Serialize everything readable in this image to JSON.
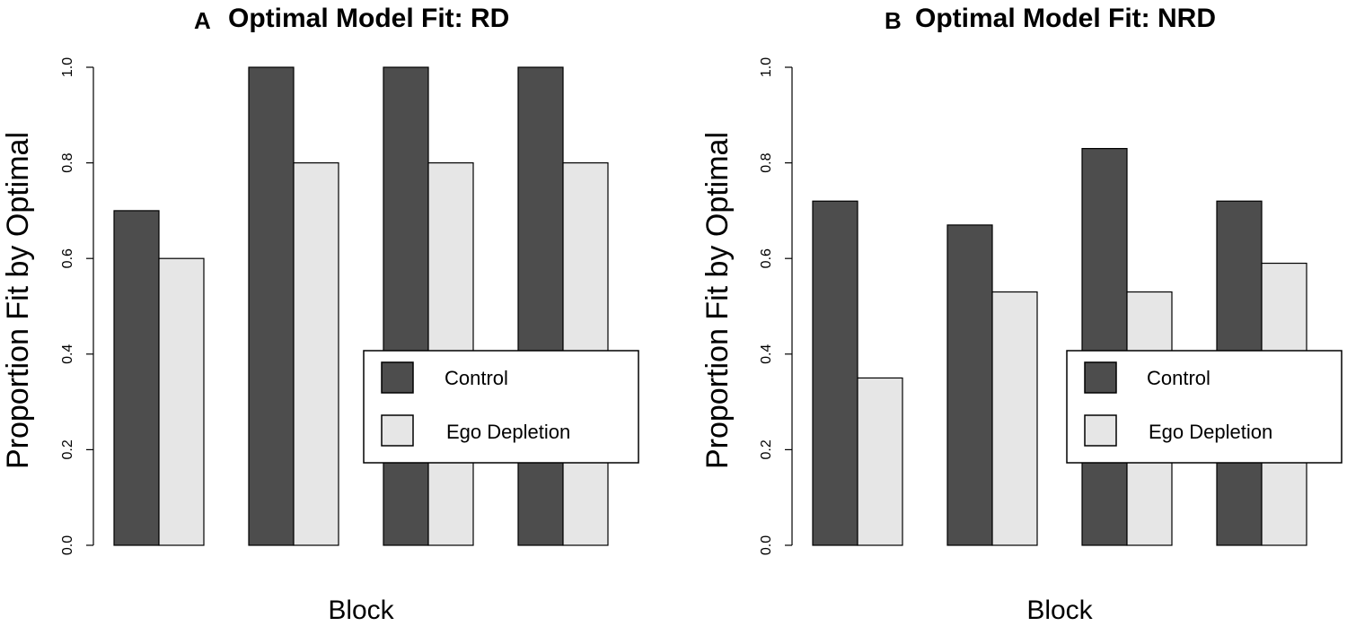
{
  "chart_data": [
    {
      "type": "bar",
      "panel_letter": "A",
      "title": "Optimal Model Fit: RD",
      "xlabel": "Block",
      "ylabel": "Proportion Fit by Optimal",
      "ylim": [
        0,
        1.0
      ],
      "yticks": [
        "0.0",
        "0.2",
        "0.4",
        "0.6",
        "0.8",
        "1.0"
      ],
      "categories": [
        "",
        "",
        "",
        ""
      ],
      "series": [
        {
          "name": "Control",
          "color": "#4d4d4d",
          "values": [
            0.7,
            1.0,
            1.0,
            1.0
          ]
        },
        {
          "name": "Ego Depletion",
          "color": "#e6e6e6",
          "values": [
            0.6,
            0.8,
            0.8,
            0.8
          ]
        }
      ],
      "legend_position": "bottom-right"
    },
    {
      "type": "bar",
      "panel_letter": "B",
      "title": "Optimal Model Fit: NRD",
      "xlabel": "Block",
      "ylabel": "Proportion Fit by Optimal",
      "ylim": [
        0,
        1.0
      ],
      "yticks": [
        "0.0",
        "0.2",
        "0.4",
        "0.6",
        "0.8",
        "1.0"
      ],
      "categories": [
        "",
        "",
        "",
        ""
      ],
      "series": [
        {
          "name": "Control",
          "color": "#4d4d4d",
          "values": [
            0.72,
            0.67,
            0.83,
            0.72
          ]
        },
        {
          "name": "Ego Depletion",
          "color": "#e6e6e6",
          "values": [
            0.35,
            0.53,
            0.53,
            0.59
          ]
        }
      ],
      "legend_position": "bottom-right"
    }
  ]
}
